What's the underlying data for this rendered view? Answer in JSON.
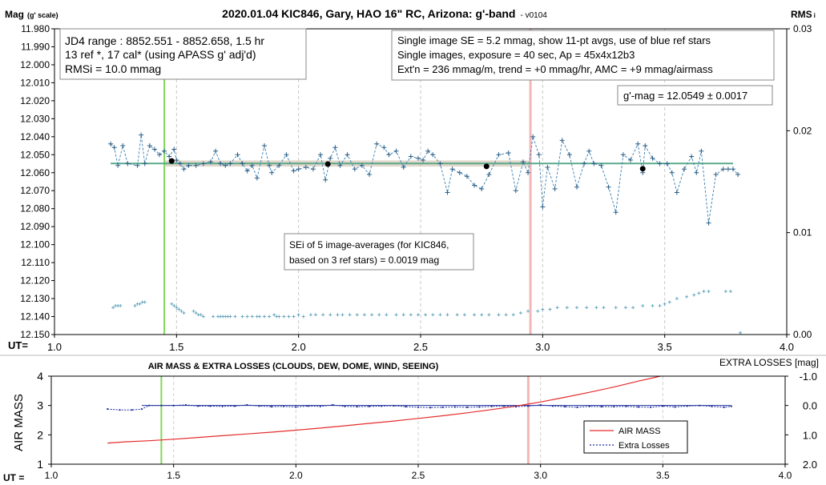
{
  "chart_data": [
    {
      "type": "scatter",
      "title": "2020.01.04 KIC846, Gary, HAO 16\" RC, Arizona: g'-band",
      "version": "- v0104",
      "ylabel": "Mag",
      "ylabel_scale": "(g' scale)",
      "y2label": "RMS",
      "y2label_suffix": "i",
      "xlabel": "UT=",
      "xlim": [
        1.0,
        4.0
      ],
      "ylim": [
        11.98,
        12.15
      ],
      "y_reversed": true,
      "y2lim": [
        0.0,
        0.03
      ],
      "x_ticks": [
        "1.0",
        "1.5",
        "2.0",
        "2.5",
        "3.0",
        "3.5",
        "4.0"
      ],
      "y_ticks": [
        "11.980",
        "11.990",
        "12.000",
        "12.010",
        "12.020",
        "12.030",
        "12.040",
        "12.050",
        "12.060",
        "12.070",
        "12.080",
        "12.090",
        "12.100",
        "12.110",
        "12.120",
        "12.130",
        "12.140",
        "12.150"
      ],
      "y2_ticks": [
        "0.03",
        "0.02",
        "0.01",
        "0.00"
      ],
      "grid": "vertical",
      "info_left": [
        "JD4 range : 8852.551 - 8852.658,  1.5  hr",
        "13 ref *, 17 cal* (using APASS g' adj'd)",
        "RMSi = 10.0 mmag"
      ],
      "info_right": [
        "Single image SE = 5.2 mmag, show  11-pt avgs, use of blue ref stars",
        "Single images, exposure = 40 sec, Ap = 45x4x12b3",
        "Ext'n = 236 mmag/m, trend =  +0 mmag/hr, AMC = +9 mmag/airmass"
      ],
      "mag_label": "g'-mag = 12.0549 ± 0.0017",
      "sei_note": [
        "SEi of 5 image-averages (for KIC846,",
        "based on 3 ref stars) = 0.0019 mag"
      ],
      "mean_mag": 12.0549,
      "mean_band": [
        12.0532,
        12.0566
      ],
      "vline_green_x": 1.45,
      "vline_pink_x": 2.95,
      "series": [
        {
          "type": "line",
          "x": [
            1.23,
            1.245,
            1.26,
            1.28,
            1.3,
            1.34,
            1.355,
            1.37,
            1.39,
            1.41,
            1.43,
            1.45,
            1.47,
            1.49,
            1.5,
            1.515,
            1.53,
            1.55,
            1.58,
            1.61,
            1.64,
            1.66,
            1.68,
            1.7,
            1.72,
            1.75,
            1.77,
            1.79,
            1.81,
            1.83,
            1.86,
            1.88,
            1.89,
            1.92,
            1.95,
            1.98,
            2.0,
            2.03,
            2.06,
            2.09,
            2.11,
            2.13,
            2.15,
            2.17,
            2.2,
            2.23,
            2.26,
            2.29,
            2.32,
            2.35,
            2.37,
            2.4,
            2.43,
            2.46,
            2.49,
            2.51,
            2.53,
            2.55,
            2.58,
            2.61,
            2.63,
            2.66,
            2.69,
            2.72,
            2.75,
            2.78,
            2.82,
            2.86,
            2.89,
            2.92,
            2.94,
            2.96,
            2.985,
            3.0,
            3.02,
            3.05,
            3.08,
            3.11,
            3.14,
            3.17,
            3.19,
            3.21,
            3.24,
            3.27,
            3.3,
            3.33,
            3.36,
            3.39,
            3.41,
            3.42,
            3.45,
            3.48,
            3.51,
            3.53,
            3.55,
            3.58,
            3.61,
            3.63,
            3.65,
            3.68,
            3.71,
            3.74,
            3.76,
            3.78,
            3.8
          ],
          "y": [
            12.044,
            12.046,
            12.056,
            12.045,
            12.055,
            12.056,
            12.039,
            12.055,
            12.045,
            12.047,
            12.05,
            12.048,
            12.051,
            12.047,
            12.053,
            12.055,
            12.058,
            12.056,
            12.056,
            12.055,
            12.054,
            12.048,
            12.055,
            12.056,
            12.055,
            12.05,
            12.055,
            12.059,
            12.056,
            12.063,
            12.045,
            12.056,
            12.06,
            12.056,
            12.05,
            12.059,
            12.058,
            12.057,
            12.058,
            12.05,
            12.064,
            12.052,
            12.046,
            12.056,
            12.05,
            12.058,
            12.056,
            12.061,
            12.044,
            12.046,
            12.05,
            12.048,
            12.057,
            12.051,
            12.052,
            12.053,
            12.048,
            12.05,
            12.055,
            12.071,
            12.058,
            12.06,
            12.062,
            12.067,
            12.069,
            12.061,
            12.05,
            12.049,
            12.07,
            12.054,
            12.06,
            12.04,
            12.05,
            12.079,
            12.057,
            12.069,
            12.042,
            12.05,
            12.068,
            12.055,
            12.048,
            12.055,
            12.056,
            12.068,
            12.082,
            12.05,
            12.053,
            12.044,
            12.06,
            12.045,
            12.052,
            12.055,
            12.055,
            12.06,
            12.071,
            12.058,
            12.051,
            12.06,
            12.048,
            12.088,
            12.061,
            12.058,
            12.058,
            12.058,
            12.061
          ]
        },
        {
          "type": "points",
          "x": [
            1.48,
            2.12,
            2.77,
            3.41
          ],
          "y": [
            12.0535,
            12.0552,
            12.0565,
            12.0578
          ]
        },
        {
          "type": "rms",
          "x": [
            1.24,
            1.25,
            1.26,
            1.27,
            1.33,
            1.34,
            1.35,
            1.36,
            1.37,
            1.48,
            1.49,
            1.5,
            1.51,
            1.52,
            1.53,
            1.57,
            1.58,
            1.59,
            1.6,
            1.61,
            1.65,
            1.67,
            1.68,
            1.69,
            1.7,
            1.71,
            1.72,
            1.74,
            1.77,
            1.79,
            1.81,
            1.83,
            1.84,
            1.86,
            1.88,
            1.9,
            1.91,
            1.92,
            1.94,
            1.96,
            1.98,
            2.0,
            2.02,
            2.05,
            2.07,
            2.1,
            2.13,
            2.16,
            2.18,
            2.21,
            2.24,
            2.27,
            2.3,
            2.33,
            2.36,
            2.4,
            2.43,
            2.46,
            2.49,
            2.52,
            2.55,
            2.58,
            2.61,
            2.65,
            2.68,
            2.72,
            2.75,
            2.78,
            2.82,
            2.85,
            2.88,
            2.91,
            2.94,
            2.98,
            3.0,
            3.03,
            3.06,
            3.1,
            3.14,
            3.18,
            3.22,
            3.25,
            3.3,
            3.34,
            3.37,
            3.41,
            3.45,
            3.48,
            3.5,
            3.52,
            3.55,
            3.59,
            3.62,
            3.64,
            3.66,
            3.68,
            3.75,
            3.77,
            3.81
          ],
          "y": [
            12.135,
            12.134,
            12.134,
            12.134,
            12.134,
            12.133,
            12.133,
            12.132,
            12.132,
            12.133,
            12.134,
            12.135,
            12.136,
            12.137,
            12.138,
            12.137,
            12.138,
            12.139,
            12.139,
            12.14,
            12.14,
            12.14,
            12.14,
            12.14,
            12.14,
            12.14,
            12.14,
            12.14,
            12.14,
            12.14,
            12.14,
            12.14,
            12.14,
            12.14,
            12.14,
            12.139,
            12.14,
            12.14,
            12.14,
            12.14,
            12.14,
            12.139,
            12.14,
            12.139,
            12.139,
            12.139,
            12.139,
            12.139,
            12.139,
            12.139,
            12.139,
            12.139,
            12.139,
            12.139,
            12.139,
            12.139,
            12.139,
            12.139,
            12.139,
            12.139,
            12.139,
            12.139,
            12.139,
            12.139,
            12.139,
            12.139,
            12.139,
            12.139,
            12.139,
            12.139,
            12.139,
            12.138,
            12.137,
            12.137,
            12.136,
            12.136,
            12.135,
            12.135,
            12.135,
            12.135,
            12.135,
            12.135,
            12.135,
            12.135,
            12.135,
            12.134,
            12.134,
            12.134,
            12.133,
            12.132,
            12.13,
            12.129,
            12.128,
            12.127,
            12.126,
            12.126,
            12.126,
            12.126,
            12.149
          ]
        }
      ]
    },
    {
      "type": "line",
      "title": "AIR MASS & EXTRA LOSSES (CLOUDS, DEW, DOME, WIND, SEEING)",
      "ylabel": "AIR MASS",
      "y2label": "EXTRA LOSSES [mag]",
      "xlabel": "UT =",
      "xlim": [
        1.0,
        4.0
      ],
      "ylim": [
        1,
        4
      ],
      "y2lim": [
        -1.0,
        2.0
      ],
      "y2_reversed": true,
      "x_ticks": [
        "1.0",
        "1.5",
        "2.0",
        "2.5",
        "3.0",
        "3.5",
        "4.0"
      ],
      "y_ticks": [
        "4",
        "3",
        "2",
        "1"
      ],
      "y2_ticks": [
        "-1.0",
        "0.0",
        "1.0",
        "2.0"
      ],
      "vline_green_x": 1.45,
      "vline_pink_x": 2.95,
      "legend": [
        "AIR MASS",
        "Extra Losses"
      ],
      "legend_placement": "bottom-right",
      "series": [
        {
          "name": "AIR MASS",
          "color": "#e52b2b",
          "x": [
            1.23,
            1.3,
            1.4,
            1.5,
            1.6,
            1.7,
            1.8,
            1.9,
            2.0,
            2.1,
            2.2,
            2.3,
            2.4,
            2.5,
            2.6,
            2.7,
            2.8,
            2.9,
            3.0,
            3.1,
            3.2,
            3.3,
            3.4,
            3.49
          ],
          "y": [
            1.72,
            1.76,
            1.8,
            1.85,
            1.91,
            1.97,
            2.03,
            2.09,
            2.16,
            2.23,
            2.31,
            2.39,
            2.47,
            2.56,
            2.65,
            2.75,
            2.86,
            2.98,
            3.12,
            3.28,
            3.45,
            3.63,
            3.83,
            4.0
          ]
        },
        {
          "name": "Extra Losses",
          "color": "#1f2f9c",
          "x": [
            1.23,
            1.28,
            1.33,
            1.37,
            1.4,
            1.45,
            1.5,
            1.55,
            1.6,
            1.65,
            1.7,
            1.75,
            1.8,
            1.85,
            1.9,
            1.95,
            2.0,
            2.05,
            2.1,
            2.15,
            2.2,
            2.25,
            2.3,
            2.35,
            2.4,
            2.45,
            2.5,
            2.55,
            2.6,
            2.65,
            2.7,
            2.75,
            2.8,
            2.85,
            2.9,
            2.95,
            3.0,
            3.05,
            3.1,
            3.15,
            3.2,
            3.25,
            3.3,
            3.35,
            3.4,
            3.45,
            3.5,
            3.55,
            3.6,
            3.65,
            3.7,
            3.75,
            3.78
          ],
          "y": [
            0.12,
            0.15,
            0.15,
            0.12,
            0.0,
            0.0,
            0.0,
            -0.02,
            0.02,
            0.02,
            0.03,
            0.02,
            -0.02,
            0.02,
            0.04,
            0.03,
            0.05,
            0.02,
            0.03,
            -0.02,
            0.03,
            0.04,
            0.03,
            0.02,
            0.01,
            0.04,
            0.06,
            0.07,
            0.06,
            0.05,
            0.06,
            0.05,
            0.03,
            0.02,
            0.04,
            0.02,
            -0.02,
            0.02,
            0.04,
            0.06,
            0.03,
            0.04,
            0.04,
            0.03,
            0.05,
            0.06,
            0.02,
            0.05,
            0.02,
            0.0,
            0.03,
            0.06,
            0.03
          ]
        }
      ]
    }
  ]
}
